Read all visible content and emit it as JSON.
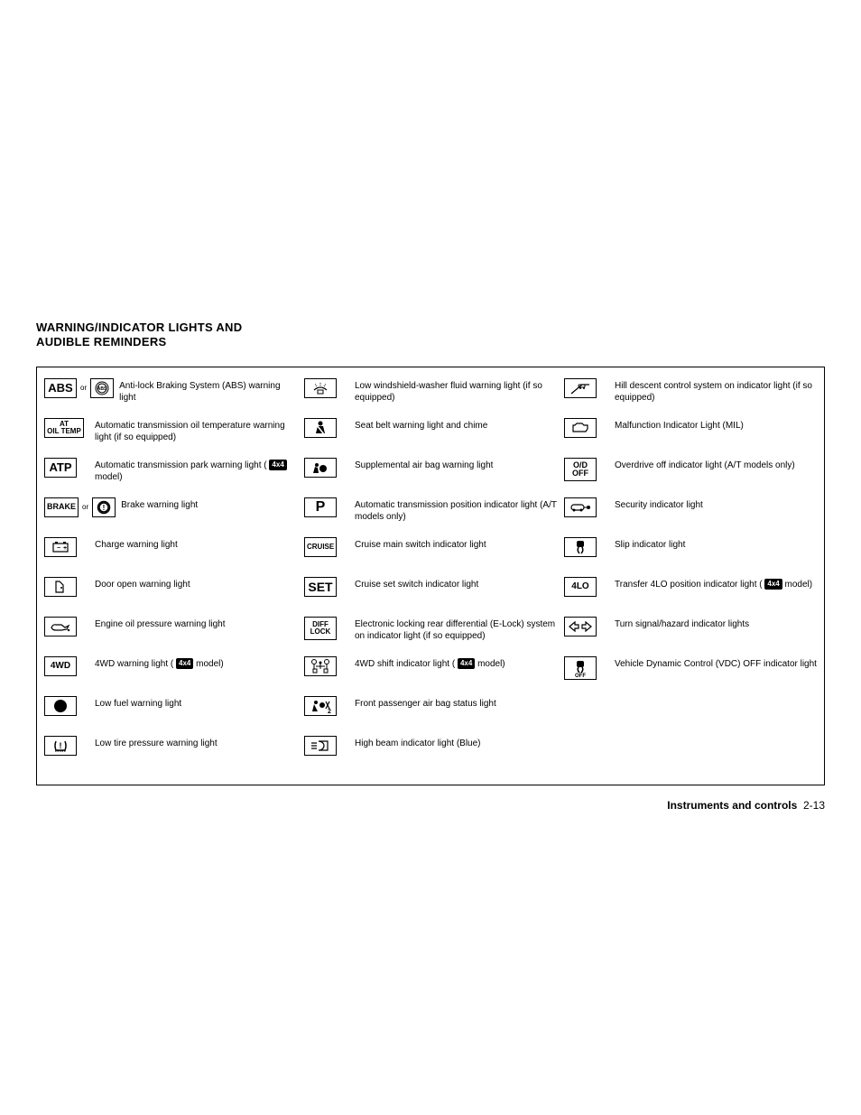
{
  "heading_line1": "WARNING/INDICATOR LIGHTS AND",
  "heading_line2": "AUDIBLE REMINDERS",
  "footer_section": "Instruments and controls",
  "footer_page": "2-13",
  "fourx4_label": "4x4",
  "or_label": "or",
  "col1": [
    {
      "icon": "ABS_dual",
      "desc": "Anti-lock Braking System (ABS) warning light"
    },
    {
      "icon": "AT_OIL",
      "desc": "Automatic transmission oil temperature warning light (if so equipped)"
    },
    {
      "icon": "ATP",
      "desc_pre": "Automatic transmission park warning light ( ",
      "desc_post": " model)",
      "has4x4": true
    },
    {
      "icon": "BRAKE_dual",
      "desc": "Brake warning light"
    },
    {
      "icon": "battery",
      "desc": "Charge warning light"
    },
    {
      "icon": "door",
      "desc": "Door open warning light"
    },
    {
      "icon": "oil",
      "desc": "Engine oil pressure warning light"
    },
    {
      "icon": "4WD",
      "desc_pre": "4WD warning light ( ",
      "desc_post": " model)",
      "has4x4": true
    },
    {
      "icon": "dot",
      "desc": "Low fuel warning light"
    },
    {
      "icon": "tire",
      "desc": "Low tire pressure warning light"
    }
  ],
  "col2": [
    {
      "icon": "washer",
      "desc": "Low windshield-washer fluid warning light (if so equipped)"
    },
    {
      "icon": "seatbelt",
      "desc": "Seat belt warning light and chime"
    },
    {
      "icon": "airbag",
      "desc": "Supplemental air bag warning light"
    },
    {
      "icon": "P",
      "desc": "Automatic transmission position indicator light (A/T models only)"
    },
    {
      "icon": "CRUISE",
      "desc": "Cruise main switch indicator light"
    },
    {
      "icon": "SET",
      "desc": "Cruise set switch indicator light"
    },
    {
      "icon": "DIFF_LOCK",
      "desc": "Electronic locking rear differential (E-Lock) system on indicator light (if so equipped)"
    },
    {
      "icon": "shift",
      "desc_pre": "4WD shift indicator light ( ",
      "desc_post": " model)",
      "has4x4": true
    },
    {
      "icon": "pass_airbag",
      "desc": "Front passenger air bag status light"
    },
    {
      "icon": "highbeam",
      "desc": "High beam indicator light (Blue)"
    }
  ],
  "col3": [
    {
      "icon": "hill",
      "desc": "Hill descent control system on indicator light (if so equipped)"
    },
    {
      "icon": "mil",
      "desc": "Malfunction Indicator Light (MIL)"
    },
    {
      "icon": "OD_OFF",
      "desc": "Overdrive off indicator light (A/T models only)"
    },
    {
      "icon": "security",
      "desc": "Security indicator light"
    },
    {
      "icon": "slip",
      "desc": "Slip indicator light"
    },
    {
      "icon": "4LO",
      "desc_pre": "Transfer 4LO position indicator light ( ",
      "desc_post": " model)",
      "has4x4": true
    },
    {
      "icon": "turn",
      "desc": "Turn signal/hazard indicator lights"
    },
    {
      "icon": "vdc",
      "desc": "Vehicle Dynamic Control (VDC) OFF indicator light"
    }
  ]
}
